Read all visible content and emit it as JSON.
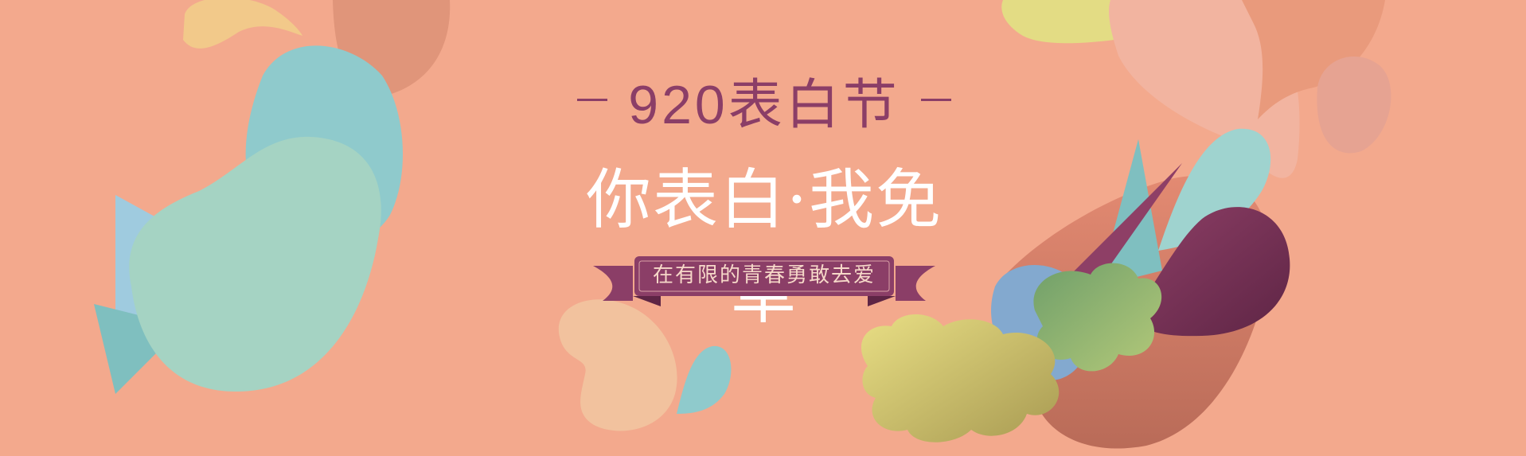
{
  "banner": {
    "subtitle": "920表白节",
    "title": "你表白·我免单",
    "slogan": "在有限的青春勇敢去爱"
  },
  "colors": {
    "background": "#f3a98d",
    "accent": "#8b3e67",
    "title_text": "#ffffff"
  },
  "decorations": {
    "style": "abstract-blobs"
  }
}
